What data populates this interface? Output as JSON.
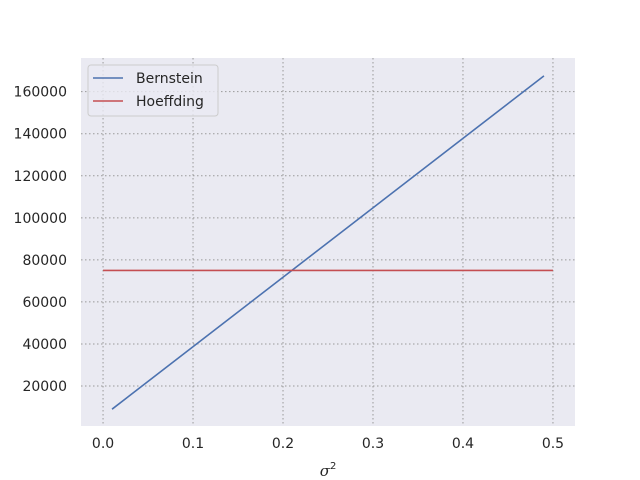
{
  "chart_data": {
    "type": "line",
    "title": "",
    "xlabel": "σ",
    "xlabel_superscript": "2",
    "ylabel": "",
    "xlim": [
      -0.0245,
      0.5245
    ],
    "ylim": [
      1000,
      176000
    ],
    "xticks": [
      0.0,
      0.1,
      0.2,
      0.3,
      0.4,
      0.5
    ],
    "xtick_labels": [
      "0.0",
      "0.1",
      "0.2",
      "0.3",
      "0.4",
      "0.5"
    ],
    "yticks": [
      20000,
      40000,
      60000,
      80000,
      100000,
      120000,
      140000,
      160000
    ],
    "ytick_labels": [
      "20000",
      "40000",
      "60000",
      "80000",
      "100000",
      "120000",
      "140000",
      "160000"
    ],
    "grid": true,
    "legend_position": "top-left",
    "background": "#eaeaf2",
    "series": [
      {
        "name": "Bernstein",
        "color": "#4c72b0",
        "x": [
          0.01,
          0.49
        ],
        "y": [
          9000,
          167500
        ]
      },
      {
        "name": "Hoeffding",
        "color": "#c44e52",
        "x": [
          0.0,
          0.5
        ],
        "y": [
          75000,
          75000
        ]
      }
    ]
  }
}
